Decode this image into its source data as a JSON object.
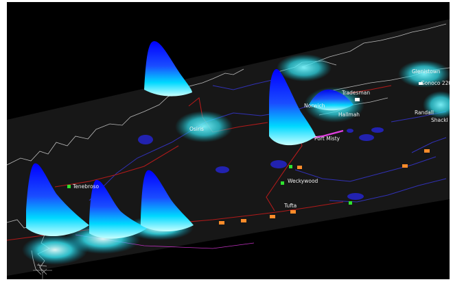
{
  "viewport": {
    "background": "#000000",
    "plane_color": "#181818",
    "coast_color": "#d9d9d9",
    "river_color": "#3d3dcc",
    "road_color": "#b01818",
    "highlight_route_color": "#e040e0",
    "peak_colors": [
      "#0000ff",
      "#00e5ff",
      "#e8ffff"
    ]
  },
  "towns": [
    {
      "name": "Tenebroso",
      "marker": "green",
      "key": "tenebroso"
    },
    {
      "name": "Weckywood",
      "marker": "green",
      "key": "weckywood"
    },
    {
      "name": "Tufta",
      "marker": "none",
      "key": "tufta"
    },
    {
      "name": "Port Misty",
      "marker": "none",
      "key": "port-misty"
    },
    {
      "name": "Osiris",
      "marker": "white",
      "key": "osiris"
    },
    {
      "name": "Norwich",
      "marker": "none",
      "key": "norwich"
    },
    {
      "name": "Tradesman",
      "marker": "none",
      "key": "tradesman"
    },
    {
      "name": "Hallmah",
      "marker": "none",
      "key": "hallmah"
    },
    {
      "name": "Glenistown",
      "marker": "none",
      "key": "glenistown"
    },
    {
      "name": "Gonoco 220",
      "marker": "white",
      "key": "gonoco"
    },
    {
      "name": "Randall",
      "marker": "none",
      "key": "randall"
    },
    {
      "name": "Shackl",
      "marker": "none",
      "key": "shackl"
    }
  ],
  "icons": {
    "green_marker": "green-square-marker-icon",
    "orange_marker": "orange-square-marker-icon",
    "compass": "compass-rose-icon"
  }
}
